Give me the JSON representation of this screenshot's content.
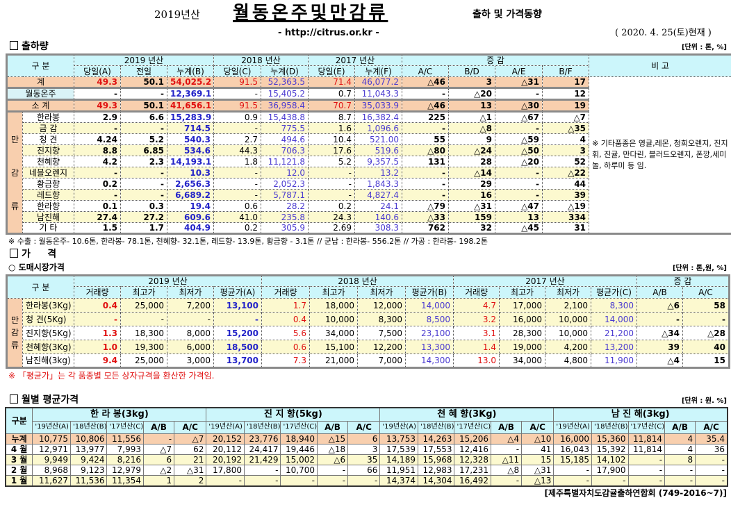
{
  "header": {
    "year_label": "2019년산",
    "title": "월동온주및만감류",
    "subtitle": "출하 및 가격동향",
    "url": "- http://citrus.or.kr -",
    "as_of": "( 2020. 4. 25(토)현재 )"
  },
  "shipment": {
    "section_title": "출하량",
    "unit": "[단위 : 톤, %]",
    "group_headers": [
      "구   분",
      "2019 년산",
      "2018 년산",
      "2017 년산",
      "증      감",
      "비 고"
    ],
    "sub_headers": [
      "당일(A)",
      "전일",
      "누계(B)",
      "당일(C)",
      "누계(D)",
      "당일(E)",
      "누계(F)",
      "A/C",
      "B/D",
      "A/E",
      "B/F"
    ],
    "category_label": "만감류",
    "remark": "※ 기타품종은 영귤,레몬, 청희오렌지, 진지휘, 진귤, 만다린, 블러드오렌지, 폰깡,세미놀, 하루미 등 임.",
    "rows": [
      {
        "name": "계",
        "values": [
          "49.3",
          "50.1",
          "54,025.2",
          "91.5",
          "52,363.5",
          "71.4",
          "46,077.2",
          "△46",
          "3",
          "△31",
          "17"
        ]
      },
      {
        "name": "월동온주",
        "values": [
          "-",
          "-",
          "12,369.1",
          "-",
          "15,405.2",
          "0.7",
          "11,043.3",
          "-",
          "△20",
          "-",
          "12"
        ]
      },
      {
        "name": "소   계",
        "values": [
          "49.3",
          "50.1",
          "41,656.1",
          "91.5",
          "36,958.4",
          "70.7",
          "35,033.9",
          "△46",
          "13",
          "△30",
          "19"
        ]
      },
      {
        "name": "한라봉",
        "values": [
          "2.9",
          "6.6",
          "15,283.9",
          "0.9",
          "15,438.8",
          "8.7",
          "16,382.4",
          "225",
          "△1",
          "△67",
          "△7"
        ]
      },
      {
        "name": "금   감",
        "values": [
          "-",
          "-",
          "714.5",
          "-",
          "775.5",
          "1.6",
          "1,096.6",
          "-",
          "△8",
          "-",
          "△35"
        ]
      },
      {
        "name": "청   견",
        "values": [
          "4.24",
          "5.2",
          "540.3",
          "2.7",
          "494.6",
          "10.4",
          "521.00",
          "55",
          "9",
          "△59",
          "4"
        ]
      },
      {
        "name": "진지향",
        "values": [
          "8.8",
          "6.85",
          "534.6",
          "44.3",
          "706.3",
          "17.6",
          "519.6",
          "△80",
          "△24",
          "△50",
          "3"
        ]
      },
      {
        "name": "천혜향",
        "values": [
          "4.2",
          "2.3",
          "14,193.1",
          "1.8",
          "11,121.8",
          "5.2",
          "9,357.5",
          "131",
          "28",
          "△20",
          "52"
        ]
      },
      {
        "name": "네블오렌지",
        "values": [
          "-",
          "-",
          "10.3",
          "-",
          "12.0",
          "-",
          "13.2",
          "-",
          "△14",
          "-",
          "△22"
        ]
      },
      {
        "name": "황금향",
        "values": [
          "0.2",
          "-",
          "2,656.3",
          "-",
          "2,052.3",
          "-",
          "1,843.3",
          "-",
          "29",
          "-",
          "44"
        ]
      },
      {
        "name": "레드향",
        "values": [
          "-",
          "-",
          "6,689.2",
          "-",
          "5,787.1",
          "-",
          "4,827.4",
          "-",
          "16",
          "-",
          "39"
        ]
      },
      {
        "name": "한라향",
        "values": [
          "0.1",
          "0.3",
          "19.4",
          "0.6",
          "28.2",
          "0.2",
          "24.1",
          "△79",
          "△31",
          "△47",
          "△19"
        ]
      },
      {
        "name": "남진해",
        "values": [
          "27.4",
          "27.2",
          "609.6",
          "41.0",
          "235.8",
          "24.3",
          "140.6",
          "△33",
          "159",
          "13",
          "334"
        ]
      },
      {
        "name": "기   타",
        "values": [
          "1.5",
          "1.7",
          "404.9",
          "0.2",
          "305.9",
          "2.69",
          "308.3",
          "762",
          "32",
          "△45",
          "31"
        ]
      }
    ],
    "export_note": "※ 수출 : 월동온주- 10.6톤, 한라봉- 78.1톤, 천혜향- 32.1톤, 레드향- 13.9톤, 황금향 - 3.1톤  // 군납 : 한라봉- 556.2톤  // 가공 : 한라봉- 198.2톤"
  },
  "price": {
    "section_title": "가     격",
    "subsection": "○ 도매시장가격",
    "unit": "[단위 : 톤,원, %]",
    "group_headers": [
      "구   분",
      "2019 년산",
      "2018 년산",
      "2017 년산",
      "증   감"
    ],
    "sub_headers": [
      "거래량",
      "최고가",
      "최저가",
      "평균가(A)",
      "거래량",
      "최고가",
      "최저가",
      "평균가(B)",
      "거래량",
      "최고가",
      "최저가",
      "평균가(C)",
      "A/B",
      "A/C"
    ],
    "category_label": "만감류",
    "rows": [
      {
        "name": "한라봉(3Kg)",
        "values": [
          "0.4",
          "25,000",
          "7,200",
          "13,100",
          "1.7",
          "18,000",
          "12,000",
          "14,000",
          "4.7",
          "17,000",
          "2,100",
          "8,300",
          "△6",
          "58"
        ]
      },
      {
        "name": "청   견(5Kg)",
        "values": [
          "-",
          "-",
          "-",
          "-",
          "0.4",
          "10,000",
          "8,300",
          "8,500",
          "3.2",
          "16,000",
          "10,000",
          "14,000",
          "-",
          "-"
        ]
      },
      {
        "name": "진지향(5Kg)",
        "values": [
          "1.3",
          "18,300",
          "8,000",
          "15,200",
          "5.6",
          "34,000",
          "7,500",
          "23,100",
          "3.1",
          "28,300",
          "10,000",
          "21,200",
          "△34",
          "△28"
        ]
      },
      {
        "name": "천혜향(3Kg)",
        "values": [
          "1.0",
          "19,300",
          "6,000",
          "18,500",
          "0.6",
          "15,100",
          "12,200",
          "13,300",
          "1.4",
          "19,000",
          "4,200",
          "13,200",
          "39",
          "40"
        ]
      },
      {
        "name": "남진해(3kg)",
        "values": [
          "9.4",
          "25,000",
          "3,000",
          "13,700",
          "7.3",
          "21,000",
          "7,000",
          "14,300",
          "13.0",
          "34,000",
          "4,800",
          "11,900",
          "△4",
          "15"
        ]
      }
    ],
    "note": "※ 「평균가」는 각 품종별 모든 상자규격을 환산한 가격임."
  },
  "monthly": {
    "section_title": "월별 평균가격",
    "unit": "[단위 : 원. %]",
    "corner": "구분",
    "groups": [
      "한  라  봉(3kg)",
      "진 지 향(5kg)",
      "천 혜 향(3Kg)",
      "남 진  해(3kg)"
    ],
    "sub_headers": [
      "'19년산(A)",
      "'18년산(B)",
      "'17년산(C)",
      "A/B",
      "A/C"
    ],
    "rows": [
      {
        "name": "누계",
        "values": [
          "10,775",
          "10,806",
          "11,556",
          "-",
          "△7",
          "20,152",
          "23,776",
          "18,940",
          "△15",
          "6",
          "13,753",
          "14,263",
          "15,206",
          "△4",
          "△10",
          "16,000",
          "15,360",
          "11,814",
          "4",
          "35.4"
        ]
      },
      {
        "name": "4 월",
        "values": [
          "12,971",
          "13,977",
          "7,993",
          "△7",
          "62",
          "20,112",
          "24,417",
          "19,446",
          "△18",
          "3",
          "17,539",
          "17,553",
          "12,416",
          "-",
          "41",
          "16,043",
          "15,392",
          "11,814",
          "4",
          "36"
        ]
      },
      {
        "name": "3 월",
        "values": [
          "9,949",
          "9,424",
          "8,216",
          "6",
          "21",
          "20,192",
          "21,429",
          "15,002",
          "△6",
          "35",
          "14,189",
          "15,968",
          "12,328",
          "△11",
          "15",
          "15,185",
          "14,102",
          "-",
          "8",
          "-"
        ]
      },
      {
        "name": "2 월",
        "values": [
          "8,968",
          "9,123",
          "12,979",
          "△2",
          "△31",
          "17,800",
          "-",
          "10,700",
          "-",
          "66",
          "11,951",
          "12,983",
          "17,231",
          "△8",
          "△31",
          "-",
          "17,900",
          "-",
          "-",
          "-"
        ]
      },
      {
        "name": "1 월",
        "values": [
          "11,627",
          "11,536",
          "11,354",
          "1",
          "2",
          "-",
          "-",
          "-",
          "-",
          "-",
          "14,374",
          "14,304",
          "16,492",
          "-",
          "△13",
          "-",
          "-",
          "-",
          "-",
          "-"
        ]
      }
    ]
  },
  "footer": "[제주특별자치도감귤출하연합회 (749-2016~7)]"
}
